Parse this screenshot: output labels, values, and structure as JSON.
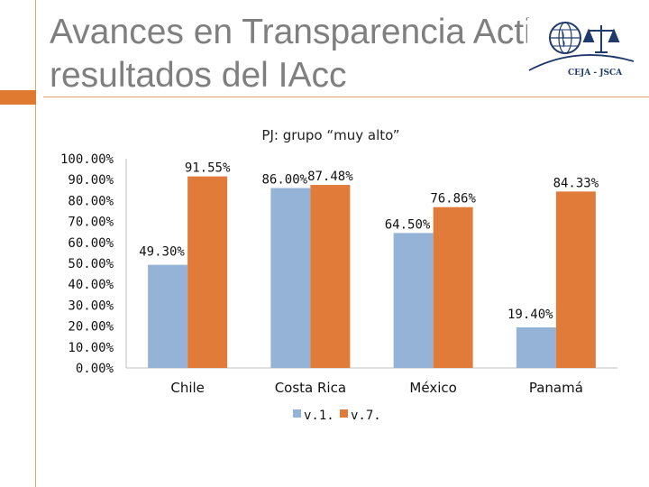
{
  "slide": {
    "title_line1": "Avances en Transparencia Activa:",
    "title_line2": "resultados del IAcc",
    "logo_text": "CEJA - JSCA"
  },
  "colors": {
    "series1": "#95b3d7",
    "series2": "#e07b39",
    "accent": "#e07a30",
    "title": "#7f7f7f"
  },
  "chart_data": {
    "type": "bar",
    "title": "PJ: grupo “muy alto”",
    "categories": [
      "Chile",
      "Costa Rica",
      "México",
      "Panamá"
    ],
    "series": [
      {
        "name": "v.1.",
        "values": [
          49.3,
          86.0,
          64.5,
          19.4
        ],
        "labels": [
          "49.30%",
          "86.00%",
          "64.50%",
          "19.40%"
        ]
      },
      {
        "name": "v.7.",
        "values": [
          91.55,
          87.48,
          76.86,
          84.33
        ],
        "labels": [
          "91.55%",
          "87.48%",
          "76.86%",
          "84.33%"
        ]
      }
    ],
    "y_ticks": [
      "0.00%",
      "10.00%",
      "20.00%",
      "30.00%",
      "40.00%",
      "50.00%",
      "60.00%",
      "70.00%",
      "80.00%",
      "90.00%",
      "100.00%"
    ],
    "ylim": [
      0,
      100
    ],
    "grid": false,
    "legend": "bottom"
  }
}
